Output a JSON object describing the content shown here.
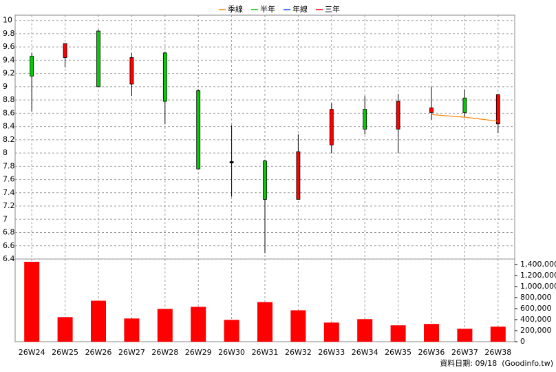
{
  "chart_data": {
    "type": "candlestick",
    "categories": [
      "26W24",
      "26W25",
      "26W26",
      "26W27",
      "26W28",
      "26W29",
      "26W30",
      "26W31",
      "26W32",
      "26W33",
      "26W34",
      "26W35",
      "26W36",
      "26W37",
      "26W38"
    ],
    "open": [
      9.46,
      9.44,
      9.84,
      9.04,
      9.51,
      8.94,
      7.87,
      7.88,
      7.3,
      8.12,
      8.66,
      8.36,
      8.61,
      8.83,
      8.44
    ],
    "high": [
      9.51,
      9.65,
      9.86,
      9.51,
      9.53,
      8.96,
      8.42,
      7.9,
      8.28,
      8.75,
      8.86,
      8.89,
      9.0,
      8.96,
      8.88
    ],
    "low": [
      8.63,
      9.29,
      9.0,
      8.86,
      8.44,
      7.76,
      7.34,
      6.49,
      7.3,
      8.0,
      8.28,
      8.0,
      8.5,
      8.54,
      8.3
    ],
    "close": [
      9.16,
      9.65,
      9.0,
      9.44,
      8.78,
      7.76,
      7.87,
      7.3,
      8.02,
      8.66,
      8.36,
      8.78,
      8.68,
      8.61,
      8.88
    ],
    "volume": [
      1450000,
      446000,
      743000,
      421000,
      595000,
      632000,
      396000,
      719000,
      570000,
      347000,
      409000,
      297000,
      322000,
      235000,
      273000
    ],
    "up_color": "#ff0000",
    "down_color": "#00cc00",
    "flat_color": "#000000",
    "volume_color": "#ff0000",
    "series": [
      {
        "name": "季線",
        "color": "#ff8000",
        "values": [
          null,
          null,
          null,
          null,
          null,
          null,
          null,
          null,
          null,
          null,
          null,
          null,
          8.58,
          8.54,
          8.48
        ]
      },
      {
        "name": "半年",
        "color": "#00cc00",
        "values": [
          null,
          null,
          null,
          null,
          null,
          null,
          null,
          null,
          null,
          null,
          null,
          null,
          null,
          null,
          null
        ]
      },
      {
        "name": "年線",
        "color": "#0050ff",
        "values": [
          null,
          null,
          null,
          null,
          null,
          null,
          null,
          null,
          null,
          null,
          null,
          null,
          null,
          null,
          null
        ]
      },
      {
        "name": "三年",
        "color": "#ff0000",
        "values": [
          null,
          null,
          null,
          null,
          null,
          null,
          null,
          null,
          null,
          null,
          null,
          null,
          null,
          null,
          null
        ]
      }
    ],
    "ylim": [
      6.4,
      10.08
    ],
    "yticks": [
      6.4,
      6.6,
      6.8,
      7,
      7.2,
      7.4,
      7.6,
      7.8,
      8,
      8.2,
      8.4,
      8.6,
      8.8,
      9,
      9.2,
      9.4,
      9.6,
      9.8,
      10
    ],
    "y2lim": [
      0,
      1500000
    ],
    "y2ticks": [
      0,
      {
        "value": 200000,
        "label": "200,000"
      },
      {
        "value": 400000,
        "label": "400,000"
      },
      {
        "value": 600000,
        "label": "600,000"
      },
      {
        "value": 800000,
        "label": "800,000"
      },
      {
        "value": 1000000,
        "label": "1,000,000"
      },
      {
        "value": 1200000,
        "label": "1,200,000"
      },
      {
        "value": 1400000,
        "label": "1,400,000"
      }
    ],
    "grid": true,
    "footer": "資料日期: 09/18  (Goodinfo.tw)"
  }
}
